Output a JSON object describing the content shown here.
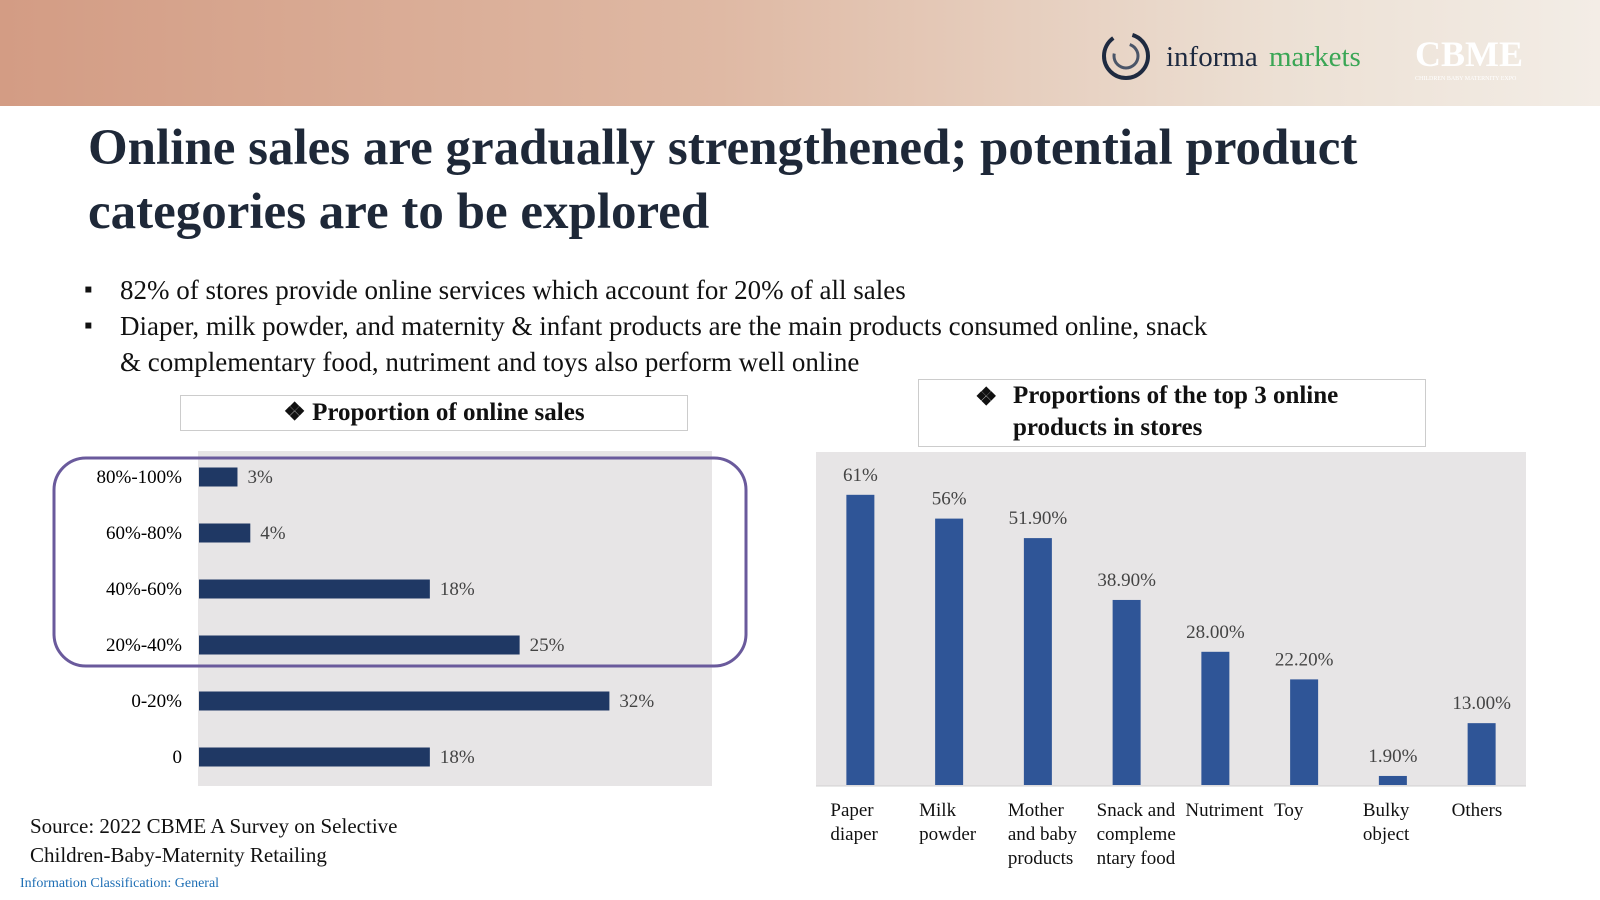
{
  "header": {
    "logo_informa": "informa",
    "logo_markets": "markets",
    "logo_cbme": "CBME",
    "logo_cbme_sub": "CHILDREN BABY MATERNITY EXPO"
  },
  "title": "Online sales are gradually strengthened; potential product categories are to be explored",
  "bullets": [
    "82% of stores provide online services which account for 20% of all sales",
    "Diaper, milk powder, and maternity & infant products are the main products consumed online, snack & complementary food, nutriment and toys also perform well online"
  ],
  "chart_data": [
    {
      "type": "hbar",
      "title": "Proportion of online sales",
      "categories": [
        "80%-100%",
        "60%-80%",
        "40%-60%",
        "20%-40%",
        "0-20%",
        "0"
      ],
      "values": [
        3,
        4,
        18,
        25,
        32,
        18
      ],
      "value_labels": [
        "3%",
        "4%",
        "18%",
        "25%",
        "32%",
        "18%"
      ],
      "color": "#1f3864",
      "xlim": [
        0,
        40
      ]
    },
    {
      "type": "bar",
      "title": "Proportions of the top 3 online products in stores",
      "categories": [
        "Paper diaper",
        "Milk powder",
        "Mother and baby products",
        "Snack and complementary food",
        "Nutriment",
        "Toy",
        "Bulky object",
        "Others"
      ],
      "values": [
        61,
        56,
        51.9,
        38.9,
        28,
        22.2,
        1.9,
        13
      ],
      "value_labels": [
        "61%",
        "56%",
        "51.90%",
        "38.90%",
        "28.00%",
        "22.20%",
        "1.90%",
        "13.00%"
      ],
      "color": "#2f5597",
      "ylim": [
        0,
        70
      ]
    }
  ],
  "source": "Source: 2022 CBME A Survey on Selective Children-Baby-Maternity Retailing",
  "classification": "Information Classification: General"
}
